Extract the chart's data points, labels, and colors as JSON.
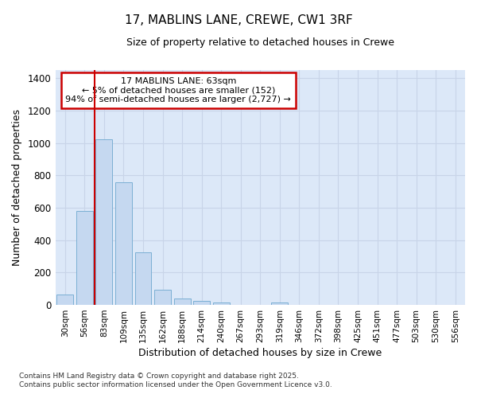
{
  "title_line1": "17, MABLINS LANE, CREWE, CW1 3RF",
  "title_line2": "Size of property relative to detached houses in Crewe",
  "xlabel": "Distribution of detached houses by size in Crewe",
  "ylabel": "Number of detached properties",
  "categories": [
    "30sqm",
    "56sqm",
    "83sqm",
    "109sqm",
    "135sqm",
    "162sqm",
    "188sqm",
    "214sqm",
    "240sqm",
    "267sqm",
    "293sqm",
    "319sqm",
    "346sqm",
    "372sqm",
    "398sqm",
    "425sqm",
    "451sqm",
    "477sqm",
    "503sqm",
    "530sqm",
    "556sqm"
  ],
  "values": [
    65,
    578,
    1025,
    757,
    325,
    93,
    38,
    25,
    15,
    0,
    0,
    15,
    0,
    0,
    0,
    0,
    0,
    0,
    0,
    0,
    0
  ],
  "bar_color": "#c5d8f0",
  "bar_edge_color": "#7bafd4",
  "grid_color": "#c8d4e8",
  "plot_bg_color": "#dce8f8",
  "fig_bg_color": "#ffffff",
  "red_line_x": 1.5,
  "annotation_text": "17 MABLINS LANE: 63sqm\n← 5% of detached houses are smaller (152)\n94% of semi-detached houses are larger (2,727) →",
  "annotation_box_color": "#ffffff",
  "annotation_border_color": "#cc0000",
  "footer_line1": "Contains HM Land Registry data © Crown copyright and database right 2025.",
  "footer_line2": "Contains public sector information licensed under the Open Government Licence v3.0.",
  "ylim": [
    0,
    1450
  ],
  "yticks": [
    0,
    200,
    400,
    600,
    800,
    1000,
    1200,
    1400
  ]
}
